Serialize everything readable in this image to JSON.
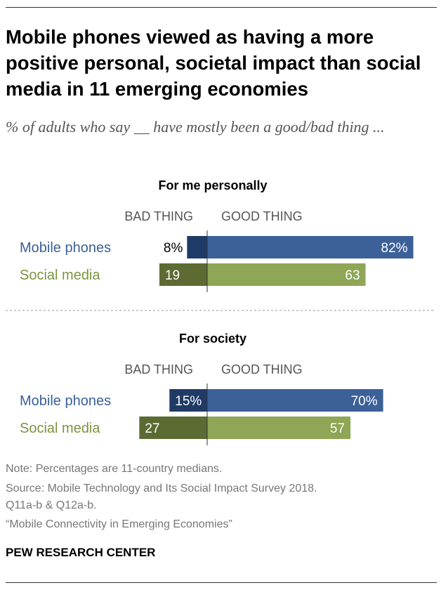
{
  "title": "Mobile phones viewed as having a more positive personal, societal impact than social media in 11 emerging economies",
  "subtitle": "% of adults who say __ have mostly been a good/bad thing ...",
  "colors": {
    "phones_good": "#3c6098",
    "phones_bad": "#1f3a66",
    "social_good": "#8ea655",
    "social_bad": "#5b6b32",
    "phones_label": "#3c6098",
    "social_label": "#7a953f"
  },
  "chart_data": [
    {
      "type": "bar",
      "title": "For me personally",
      "bad_header": "BAD THING",
      "good_header": "GOOD THING",
      "categories": [
        "Mobile phones",
        "Social media"
      ],
      "series": [
        {
          "name": "BAD THING",
          "values": [
            8,
            19
          ]
        },
        {
          "name": "GOOD THING",
          "values": [
            82,
            63
          ]
        }
      ],
      "bad_labels": [
        "8%",
        "19"
      ],
      "good_labels": [
        "82%",
        "63"
      ]
    },
    {
      "type": "bar",
      "title": "For society",
      "bad_header": "BAD THING",
      "good_header": "GOOD THING",
      "categories": [
        "Mobile phones",
        "Social media"
      ],
      "series": [
        {
          "name": "BAD THING",
          "values": [
            15,
            27
          ]
        },
        {
          "name": "GOOD THING",
          "values": [
            70,
            57
          ]
        }
      ],
      "bad_labels": [
        "15%",
        "27"
      ],
      "good_labels": [
        "70%",
        "57"
      ]
    }
  ],
  "notes": {
    "note": "Note: Percentages are 11-country medians.",
    "source": "Source: Mobile Technology and Its Social Impact Survey 2018.",
    "questions": "Q11a-b & Q12a-b.",
    "report": "“Mobile Connectivity in Emerging Economies”"
  },
  "credit": "PEW RESEARCH CENTER"
}
